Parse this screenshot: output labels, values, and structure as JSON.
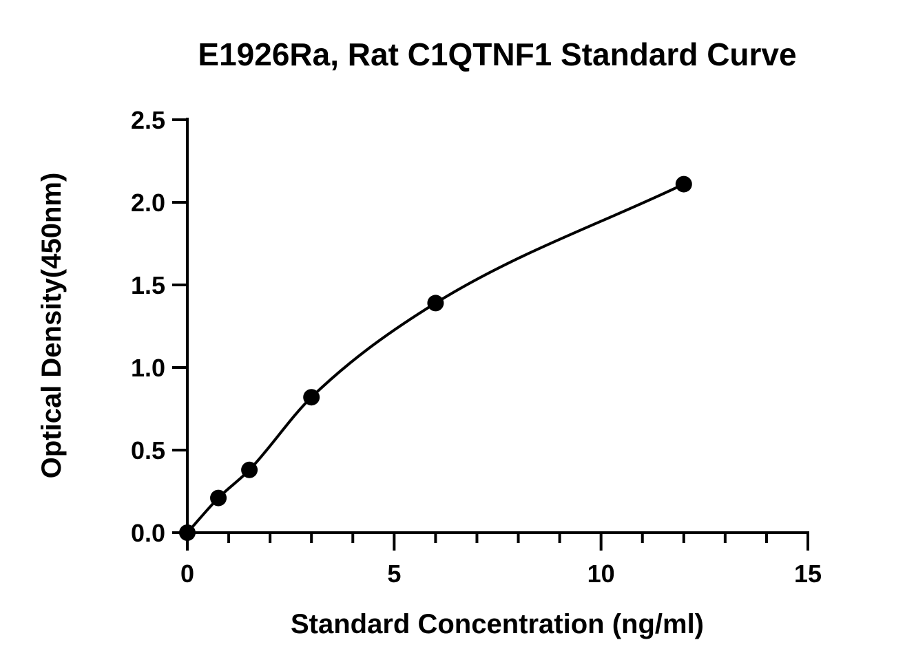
{
  "chart_data": {
    "type": "scatter",
    "title": "E1926Ra, Rat C1QTNF1 Standard Curve",
    "xlabel": "Standard Concentration (ng/ml)",
    "ylabel": "Optical Density(450nm)",
    "xlim": [
      0,
      15
    ],
    "ylim": [
      0,
      2.5
    ],
    "x_ticks": [
      0,
      5,
      10,
      15
    ],
    "y_ticks": [
      0.0,
      0.5,
      1.0,
      1.5,
      2.0,
      2.5
    ],
    "x_tick_labels": [
      "0",
      "5",
      "10",
      "15"
    ],
    "y_tick_labels": [
      "0.0",
      "0.5",
      "1.0",
      "1.5",
      "2.0",
      "2.5"
    ],
    "x_minor_step": 1,
    "grid": false,
    "legend": "none",
    "fit": "smooth curve through points",
    "series": [
      {
        "x": [
          0,
          0.75,
          1.5,
          3,
          6,
          12
        ],
        "y": [
          0.0,
          0.21,
          0.38,
          0.82,
          1.39,
          2.11
        ]
      }
    ]
  }
}
